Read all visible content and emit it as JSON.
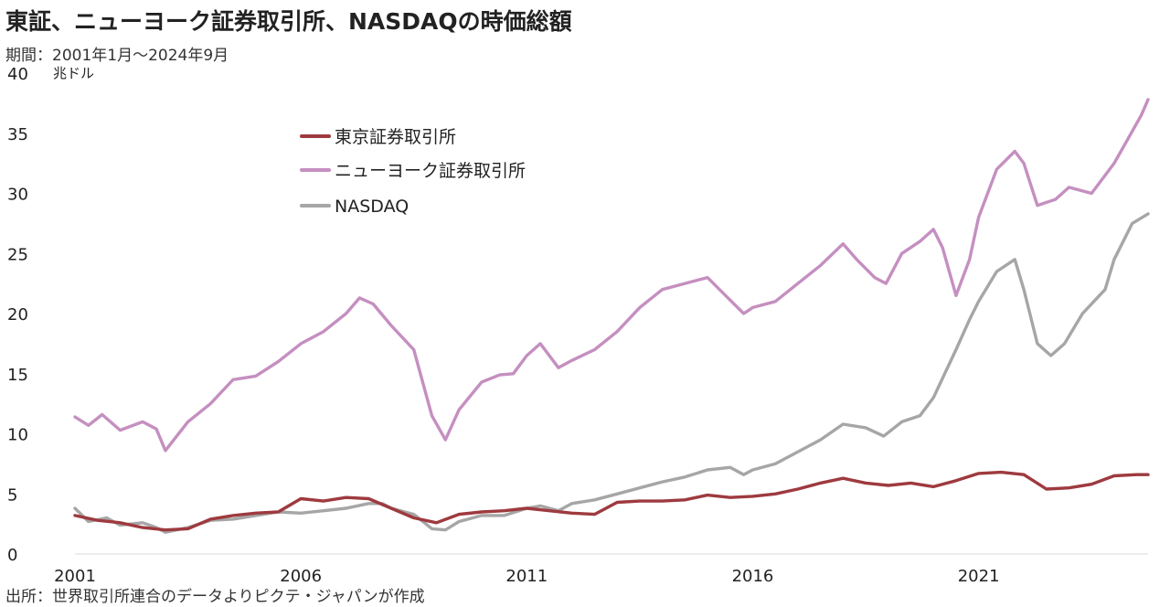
{
  "title": "東証、ニューヨーク証券取引所、NASDAQの時価総額",
  "subtitle": "期間：2001年1月〜2024年9月",
  "source": "出所：世界取引所連合のデータよりピクテ・ジャパンが作成",
  "chart_data": {
    "type": "line",
    "title": "東証、ニューヨーク証券取引所、NASDAQの時価総額",
    "subtitle": "期間：2001年1月〜2024年9月",
    "ylabel": "兆ドル",
    "xlabel": "",
    "ylim": [
      0,
      40
    ],
    "xlim": [
      2001.0,
      2024.75
    ],
    "yticks": [
      0,
      5,
      10,
      15,
      20,
      25,
      30,
      35,
      40
    ],
    "xticks": [
      2001,
      2006,
      2011,
      2016,
      2021
    ],
    "xtick_labels": [
      "2001",
      "2006",
      "2011",
      "2016",
      "2021"
    ],
    "grid": false,
    "legend_position": "top-left",
    "series": [
      {
        "name": "東京証券取引所",
        "color": "#9e3a3f",
        "x": [
          2001.0,
          2001.5,
          2002.0,
          2002.5,
          2003.0,
          2003.5,
          2004.0,
          2004.5,
          2005.0,
          2005.5,
          2006.0,
          2006.5,
          2007.0,
          2007.5,
          2008.0,
          2008.5,
          2009.0,
          2009.5,
          2010.0,
          2010.5,
          2011.0,
          2011.5,
          2012.0,
          2012.5,
          2013.0,
          2013.5,
          2014.0,
          2014.5,
          2015.0,
          2015.5,
          2016.0,
          2016.5,
          2017.0,
          2017.5,
          2018.0,
          2018.5,
          2019.0,
          2019.5,
          2020.0,
          2020.5,
          2021.0,
          2021.5,
          2022.0,
          2022.5,
          2023.0,
          2023.5,
          2024.0,
          2024.5,
          2024.75
        ],
        "values": [
          3.2,
          2.8,
          2.6,
          2.2,
          2.0,
          2.1,
          2.9,
          3.2,
          3.4,
          3.5,
          4.6,
          4.4,
          4.7,
          4.6,
          3.8,
          3.0,
          2.6,
          3.3,
          3.5,
          3.6,
          3.8,
          3.6,
          3.4,
          3.3,
          4.3,
          4.4,
          4.4,
          4.5,
          4.9,
          4.7,
          4.8,
          5.0,
          5.4,
          5.9,
          6.3,
          5.9,
          5.7,
          5.9,
          5.6,
          6.1,
          6.7,
          6.8,
          6.6,
          5.4,
          5.5,
          5.8,
          6.5,
          6.6,
          6.6
        ]
      },
      {
        "name": "ニューヨーク証券取引所",
        "color": "#c58fc0",
        "x": [
          2001.0,
          2001.3,
          2001.6,
          2002.0,
          2002.5,
          2002.8,
          2003.0,
          2003.5,
          2004.0,
          2004.5,
          2005.0,
          2005.5,
          2006.0,
          2006.5,
          2007.0,
          2007.3,
          2007.6,
          2008.0,
          2008.5,
          2008.9,
          2009.2,
          2009.5,
          2010.0,
          2010.4,
          2010.7,
          2011.0,
          2011.3,
          2011.7,
          2012.0,
          2012.5,
          2013.0,
          2013.5,
          2014.0,
          2014.5,
          2015.0,
          2015.4,
          2015.8,
          2016.0,
          2016.5,
          2017.0,
          2017.5,
          2018.0,
          2018.3,
          2018.7,
          2018.95,
          2019.3,
          2019.7,
          2020.0,
          2020.2,
          2020.5,
          2020.8,
          2021.0,
          2021.4,
          2021.8,
          2022.0,
          2022.3,
          2022.7,
          2023.0,
          2023.5,
          2024.0,
          2024.3,
          2024.6,
          2024.75
        ],
        "values": [
          11.4,
          10.7,
          11.6,
          10.3,
          11.0,
          10.4,
          8.6,
          11.0,
          12.5,
          14.5,
          14.8,
          16.0,
          17.5,
          18.5,
          20.0,
          21.3,
          20.8,
          19.0,
          17.0,
          11.5,
          9.5,
          12.0,
          14.3,
          14.9,
          15.0,
          16.5,
          17.5,
          15.5,
          16.1,
          17.0,
          18.5,
          20.5,
          22.0,
          22.5,
          23.0,
          21.5,
          20.0,
          20.5,
          21.0,
          22.5,
          24.0,
          25.8,
          24.5,
          23.0,
          22.5,
          25.0,
          26.0,
          27.0,
          25.5,
          21.5,
          24.5,
          28.0,
          32.0,
          33.5,
          32.5,
          29.0,
          29.5,
          30.5,
          30.0,
          32.5,
          34.5,
          36.5,
          37.8
        ]
      },
      {
        "name": "NASDAQ",
        "color": "#a6a6a6",
        "x": [
          2001.0,
          2001.3,
          2001.7,
          2002.0,
          2002.5,
          2002.8,
          2003.0,
          2003.5,
          2004.0,
          2004.5,
          2005.0,
          2005.5,
          2006.0,
          2006.5,
          2007.0,
          2007.5,
          2007.8,
          2008.0,
          2008.5,
          2008.9,
          2009.2,
          2009.5,
          2010.0,
          2010.5,
          2011.0,
          2011.3,
          2011.7,
          2012.0,
          2012.5,
          2013.0,
          2013.5,
          2014.0,
          2014.5,
          2015.0,
          2015.5,
          2015.8,
          2016.0,
          2016.5,
          2017.0,
          2017.5,
          2018.0,
          2018.5,
          2018.9,
          2019.3,
          2019.7,
          2020.0,
          2020.5,
          2020.8,
          2021.0,
          2021.4,
          2021.8,
          2022.0,
          2022.3,
          2022.6,
          2022.9,
          2023.3,
          2023.8,
          2024.0,
          2024.4,
          2024.75
        ],
        "values": [
          3.8,
          2.7,
          3.0,
          2.4,
          2.6,
          2.2,
          1.8,
          2.2,
          2.8,
          2.9,
          3.2,
          3.5,
          3.4,
          3.6,
          3.8,
          4.2,
          4.2,
          3.8,
          3.3,
          2.1,
          2.0,
          2.7,
          3.2,
          3.2,
          3.8,
          4.0,
          3.6,
          4.2,
          4.5,
          5.0,
          5.5,
          6.0,
          6.4,
          7.0,
          7.2,
          6.6,
          7.0,
          7.5,
          8.5,
          9.5,
          10.8,
          10.5,
          9.8,
          11.0,
          11.5,
          13.0,
          17.0,
          19.5,
          21.0,
          23.5,
          24.5,
          22.0,
          17.5,
          16.5,
          17.5,
          20.0,
          22.0,
          24.5,
          27.5,
          28.3
        ]
      }
    ]
  }
}
